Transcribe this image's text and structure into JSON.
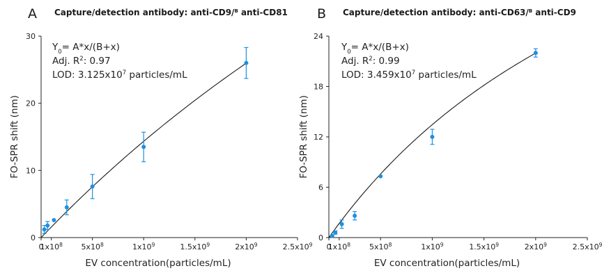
{
  "chart_data": [
    {
      "type": "scatter",
      "panel": "A",
      "title": "Capture/detection antibody: anti-CD9/",
      "title_sup": "B",
      "title_end": "anti-CD81",
      "xlabel": "EV concentration(particles/mL)",
      "ylabel": "FO-SPR shift (nm)",
      "xlim": [
        0,
        2500000000
      ],
      "ylim": [
        0,
        30
      ],
      "xticks": [
        {
          "value": 0,
          "base": "0",
          "sup": ""
        },
        {
          "value": 100000000,
          "base": "1x10",
          "sup": "8"
        },
        {
          "value": 500000000,
          "base": "5x10",
          "sup": "8"
        },
        {
          "value": 1000000000,
          "base": "1x10",
          "sup": "9"
        },
        {
          "value": 1500000000,
          "base": "1.5x10",
          "sup": "9"
        },
        {
          "value": 2000000000,
          "base": "2x10",
          "sup": "9"
        },
        {
          "value": 2500000000,
          "base": "2.5x10",
          "sup": "9"
        }
      ],
      "yticks": [
        0,
        10,
        20,
        30
      ],
      "equation": {
        "y0": "Y",
        "y0_sub": "0",
        "rest": "= A*x/(B+x)"
      },
      "r2": {
        "prefix": "Adj. R",
        "sup": "2",
        "value": ": 0.97"
      },
      "lod": {
        "prefix": "LOD: 3.125x10",
        "sup": "7",
        "suffix": " particles/mL"
      },
      "points": [
        {
          "x": 31250000,
          "y": 1.2,
          "err": 0.6
        },
        {
          "x": 62500000,
          "y": 1.8,
          "err": 0.6
        },
        {
          "x": 125000000,
          "y": 2.6,
          "err": 0
        },
        {
          "x": 250000000,
          "y": 4.5,
          "err": 1.1
        },
        {
          "x": 500000000,
          "y": 7.6,
          "err": 1.8
        },
        {
          "x": 1000000000,
          "y": 13.5,
          "err": 2.2
        },
        {
          "x": 2000000000,
          "y": 26.0,
          "err": 2.3
        }
      ],
      "fit_curve": {
        "A": 138.3,
        "B": 8650000000,
        "x_range": [
          0,
          2000000000
        ]
      },
      "color": "#1e90e0"
    },
    {
      "type": "scatter",
      "panel": "B",
      "title": "Capture/detection antibody: anti-CD63/",
      "title_sup": "B",
      "title_end": "anti-CD9",
      "xlabel": "EV concentration(particles/mL)",
      "ylabel": "FO-SPR shift (nm)",
      "xlim": [
        0,
        2500000000
      ],
      "ylim": [
        0,
        24
      ],
      "xticks": [
        {
          "value": 0,
          "base": "0",
          "sup": ""
        },
        {
          "value": 100000000,
          "base": "1x10",
          "sup": "8"
        },
        {
          "value": 500000000,
          "base": "5x10",
          "sup": "8"
        },
        {
          "value": 1000000000,
          "base": "1x10",
          "sup": "9"
        },
        {
          "value": 1500000000,
          "base": "1.5x10",
          "sup": "9"
        },
        {
          "value": 2000000000,
          "base": "2x10",
          "sup": "9"
        },
        {
          "value": 2500000000,
          "base": "2.5x10",
          "sup": "9"
        }
      ],
      "yticks": [
        0,
        6,
        12,
        18,
        24
      ],
      "equation": {
        "y0": "Y",
        "y0_sub": "0",
        "rest": "= A*x/(B+x)"
      },
      "r2": {
        "prefix": "Adj. R",
        "sup": "2",
        "value": ": 0.99"
      },
      "lod": {
        "prefix": "LOD: 3.459x10",
        "sup": "7",
        "suffix": " particles/mL"
      },
      "points": [
        {
          "x": 31250000,
          "y": 0.2,
          "err": 0.1
        },
        {
          "x": 62500000,
          "y": 0.6,
          "err": 0.2
        },
        {
          "x": 125000000,
          "y": 1.6,
          "err": 0.5
        },
        {
          "x": 250000000,
          "y": 2.6,
          "err": 0.5
        },
        {
          "x": 500000000,
          "y": 7.3,
          "err": 0
        },
        {
          "x": 1000000000,
          "y": 12.0,
          "err": 0.9
        },
        {
          "x": 2000000000,
          "y": 22.0,
          "err": 0.5
        }
      ],
      "fit_curve": {
        "A": 60.0,
        "B": 3460000000,
        "x_range": [
          0,
          2000000000
        ]
      },
      "color": "#1e90e0"
    }
  ]
}
